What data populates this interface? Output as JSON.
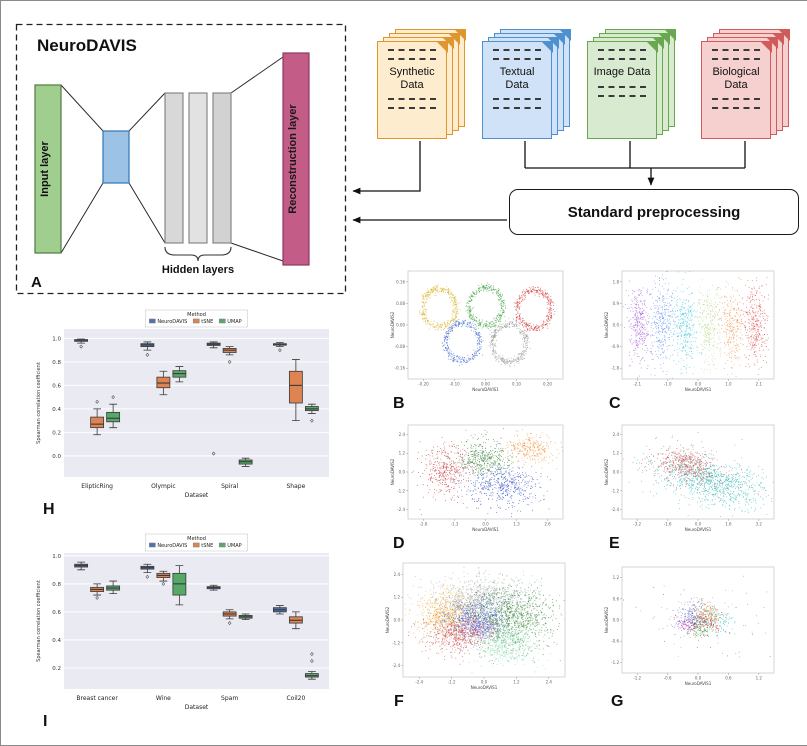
{
  "figure": {
    "panelA": {
      "tag": "A",
      "title": "NeuroDAVIS",
      "input_label": "Input layer",
      "hidden_label": "Hidden layers",
      "reconstruction_label": "Reconstruction layer"
    },
    "data_sources": [
      {
        "label": "Synthetic Data",
        "fill": "#fdeccd",
        "border": "#e0962e"
      },
      {
        "label": "Textual Data",
        "fill": "#cfe2f7",
        "border": "#4f91cf"
      },
      {
        "label": "Image Data",
        "fill": "#d8ead0",
        "border": "#6aa84f"
      },
      {
        "label": "Biological Data",
        "fill": "#f6cfcf",
        "border": "#cf5b5b"
      }
    ],
    "preprocessing_label": "Standard preprocessing",
    "architecture_colors": {
      "input": "#9fce8f",
      "bottleneck": "#9cc3e5",
      "hidden": "#d8d8d8",
      "reconstruction": "#c45c88"
    }
  },
  "chart_data": [
    {
      "tag": "B",
      "type": "scatter",
      "xlabel": "NeuroDAVIS1",
      "ylabel": "NeuroDAVIS2",
      "xlim": [
        -0.25,
        0.25
      ],
      "ylim": [
        -0.2,
        0.2
      ],
      "point_size": 0.8,
      "clusters": [
        {
          "shape": "ring",
          "color": "#d4ad17",
          "cx": -0.15,
          "cy": 0.065,
          "rx": 0.055,
          "ry": 0.07,
          "n": 380
        },
        {
          "shape": "ring",
          "color": "#3a9d3a",
          "cx": 0.0,
          "cy": 0.07,
          "rx": 0.055,
          "ry": 0.07,
          "n": 380
        },
        {
          "shape": "ring",
          "color": "#d03030",
          "cx": 0.155,
          "cy": 0.06,
          "rx": 0.055,
          "ry": 0.07,
          "n": 380
        },
        {
          "shape": "ring",
          "color": "#4169d0",
          "cx": -0.075,
          "cy": -0.062,
          "rx": 0.055,
          "ry": 0.07,
          "n": 380
        },
        {
          "shape": "ring",
          "color": "#8f8f8f",
          "cx": 0.075,
          "cy": -0.066,
          "rx": 0.055,
          "ry": 0.07,
          "n": 380
        }
      ]
    },
    {
      "tag": "C",
      "type": "scatter",
      "xlabel": "NeuroDAVIS1",
      "ylabel": "NeuroDAVIS2",
      "xlim": [
        -2.6,
        2.6
      ],
      "ylim": [
        -2.2,
        2.2
      ],
      "point_size": 0.8,
      "clusters": [
        {
          "color": "#a05ad5",
          "cx": -2.0,
          "cy": 0.0,
          "sx": 0.2,
          "sy": 0.85,
          "n": 330
        },
        {
          "color": "#5b8ff0",
          "cx": -1.2,
          "cy": 0.1,
          "sx": 0.22,
          "sy": 0.85,
          "n": 330
        },
        {
          "color": "#3ec6e0",
          "cx": -0.45,
          "cy": -0.05,
          "sx": 0.22,
          "sy": 0.8,
          "n": 330
        },
        {
          "color": "#b5d98a",
          "cx": 0.35,
          "cy": 0.05,
          "sx": 0.22,
          "sy": 0.8,
          "n": 300
        },
        {
          "color": "#f0924a",
          "cx": 1.15,
          "cy": -0.05,
          "sx": 0.22,
          "sy": 0.8,
          "n": 300
        },
        {
          "color": "#e04343",
          "cx": 1.95,
          "cy": 0.05,
          "sx": 0.2,
          "sy": 0.85,
          "n": 330
        }
      ]
    },
    {
      "tag": "D",
      "type": "scatter",
      "xlabel": "NeuroDAVIS1",
      "ylabel": "NeuroDAVIS2",
      "xlim": [
        -3.2,
        3.2
      ],
      "ylim": [
        -3,
        3
      ],
      "point_size": 0.8,
      "clusters": [
        {
          "color": "#c62828",
          "cx": -1.7,
          "cy": 0.1,
          "sx": 0.5,
          "sy": 0.8,
          "n": 320
        },
        {
          "color": "#c62828",
          "cx": -1.4,
          "cy": 0.3,
          "sx": 1.0,
          "sy": 1.2,
          "n": 60
        },
        {
          "color": "#2e7d32",
          "cx": -0.1,
          "cy": 0.85,
          "sx": 0.55,
          "sy": 0.6,
          "n": 420
        },
        {
          "color": "#2d46c8",
          "cx": 0.75,
          "cy": -0.9,
          "sx": 0.8,
          "sy": 0.65,
          "n": 480
        },
        {
          "color": "#f09030",
          "cx": 1.85,
          "cy": 1.55,
          "sx": 0.5,
          "sy": 0.45,
          "n": 280
        }
      ]
    },
    {
      "tag": "E",
      "type": "scatter",
      "xlabel": "NeuroDAVIS1",
      "ylabel": "NeuroDAVIS2",
      "xlim": [
        -4,
        4
      ],
      "ylim": [
        -3,
        3
      ],
      "point_size": 0.8,
      "clusters": [
        {
          "color": "#2ab5b5",
          "cx": 0.6,
          "cy": -0.5,
          "sx": 1.5,
          "sy": 0.65,
          "rot": -20,
          "n": 900
        },
        {
          "color": "#2ab5b5",
          "cx": 0.6,
          "cy": -0.5,
          "sx": 2.0,
          "sy": 1.0,
          "rot": -20,
          "n": 130
        },
        {
          "color": "#d94a4a",
          "cx": -0.7,
          "cy": 0.5,
          "sx": 0.85,
          "sy": 0.5,
          "rot": -15,
          "n": 420
        },
        {
          "color": "#d94a4a",
          "cx": 0.2,
          "cy": 0.0,
          "sx": 1.6,
          "sy": 0.9,
          "rot": -15,
          "n": 60
        }
      ]
    },
    {
      "tag": "F",
      "type": "scatter",
      "xlabel": "NeuroDAVIS1",
      "ylabel": "NeuroDAVIS2",
      "xlim": [
        -3,
        3
      ],
      "ylim": [
        -3,
        3
      ],
      "point_size": 0.9,
      "alpha": 0.6,
      "clusters": [
        {
          "color": "#9aa0a6",
          "cx": -0.1,
          "cy": 1.2,
          "sx": 0.95,
          "sy": 0.55,
          "n": 750
        },
        {
          "color": "#f5a623",
          "cx": -1.35,
          "cy": 0.35,
          "sx": 0.6,
          "sy": 0.6,
          "n": 650
        },
        {
          "color": "#3355cc",
          "cx": -0.35,
          "cy": 0.15,
          "sx": 0.6,
          "sy": 0.5,
          "n": 650
        },
        {
          "color": "#cc3333",
          "cx": -0.95,
          "cy": -0.7,
          "sx": 0.6,
          "sy": 0.5,
          "n": 550
        },
        {
          "color": "#8855cc",
          "cx": -0.1,
          "cy": -0.45,
          "sx": 0.4,
          "sy": 0.35,
          "n": 220
        },
        {
          "color": "#1e7a1e",
          "cx": 0.95,
          "cy": 0.15,
          "sx": 0.85,
          "sy": 0.85,
          "n": 950
        },
        {
          "color": "#7fd8a8",
          "cx": 0.7,
          "cy": -1.2,
          "sx": 0.65,
          "sy": 0.5,
          "n": 550
        }
      ]
    },
    {
      "tag": "G",
      "type": "scatter",
      "xlabel": "NeuroDAVIS1",
      "ylabel": "NeuroDAVIS2",
      "xlim": [
        -1.5,
        1.5
      ],
      "ylim": [
        -1.5,
        1.5
      ],
      "point_size": 0.8,
      "clusters": [
        {
          "color": "#2d46c8",
          "cx": -0.08,
          "cy": 0.05,
          "sx": 0.17,
          "sy": 0.17,
          "n": 150
        },
        {
          "color": "#d62728",
          "cx": 0.14,
          "cy": -0.08,
          "sx": 0.17,
          "sy": 0.17,
          "n": 130
        },
        {
          "color": "#2ca02c",
          "cx": 0.02,
          "cy": -0.24,
          "sx": 0.14,
          "sy": 0.14,
          "n": 100
        },
        {
          "color": "#ff9913",
          "cx": 0.2,
          "cy": 0.16,
          "sx": 0.14,
          "sy": 0.14,
          "n": 110
        },
        {
          "color": "#17becf",
          "cx": 0.34,
          "cy": 0.02,
          "sx": 0.18,
          "sy": 0.18,
          "n": 90
        },
        {
          "color": "#cc44cc",
          "cx": -0.24,
          "cy": -0.12,
          "sx": 0.14,
          "sy": 0.14,
          "n": 80
        },
        {
          "color": "#888888",
          "cx": 0.0,
          "cy": 0.3,
          "sx": 0.17,
          "sy": 0.17,
          "n": 90
        },
        {
          "color": "#888888",
          "cx": 0.0,
          "cy": 0.0,
          "sx": 0.75,
          "sy": 0.7,
          "n": 30
        },
        {
          "color": "#2d46c8",
          "cx": 0.0,
          "cy": 0.0,
          "sx": 0.8,
          "sy": 0.7,
          "n": 14
        },
        {
          "color": "#ff9913",
          "cx": 0.0,
          "cy": 0.0,
          "sx": 0.7,
          "sy": 0.65,
          "n": 12
        },
        {
          "color": "#17becf",
          "cx": 0.0,
          "cy": 0.0,
          "sx": 0.8,
          "sy": 0.7,
          "n": 10
        },
        {
          "color": "#d62728",
          "cx": 0.0,
          "cy": 0.0,
          "sx": 0.75,
          "sy": 0.7,
          "n": 12
        }
      ]
    },
    {
      "tag": "H",
      "type": "box",
      "ylabel": "Spearman correlation coefficient",
      "xlabel": "Dataset",
      "legend_title": "Method",
      "categories": [
        "ElipticRing",
        "Olympic",
        "Spiral",
        "Shape"
      ],
      "ylim": [
        -0.18,
        1.08
      ],
      "yticks": [
        0.0,
        0.2,
        0.4,
        0.6,
        0.8,
        1.0
      ],
      "series": [
        {
          "name": "NeuroDAVIS",
          "color": "#4c72b0",
          "stats": [
            {
              "lo": 0.96,
              "q1": 0.975,
              "med": 0.985,
              "q3": 0.99,
              "hi": 0.995,
              "out": [
                0.93
              ]
            },
            {
              "lo": 0.9,
              "q1": 0.93,
              "med": 0.945,
              "q3": 0.955,
              "hi": 0.97,
              "out": [
                0.86
              ]
            },
            {
              "lo": 0.92,
              "q1": 0.94,
              "med": 0.95,
              "q3": 0.96,
              "hi": 0.97,
              "out": [
                0.02
              ]
            },
            {
              "lo": 0.93,
              "q1": 0.945,
              "med": 0.95,
              "q3": 0.955,
              "hi": 0.965,
              "out": [
                0.9
              ]
            }
          ]
        },
        {
          "name": "tSNE",
          "color": "#dd8452",
          "stats": [
            {
              "lo": 0.18,
              "q1": 0.24,
              "med": 0.27,
              "q3": 0.33,
              "hi": 0.4,
              "out": [
                0.46
              ]
            },
            {
              "lo": 0.52,
              "q1": 0.58,
              "med": 0.62,
              "q3": 0.67,
              "hi": 0.72,
              "out": []
            },
            {
              "lo": 0.86,
              "q1": 0.88,
              "med": 0.9,
              "q3": 0.915,
              "hi": 0.93,
              "out": [
                0.8
              ]
            },
            {
              "lo": 0.3,
              "q1": 0.45,
              "med": 0.6,
              "q3": 0.72,
              "hi": 0.82,
              "out": []
            }
          ]
        },
        {
          "name": "UMAP",
          "color": "#55a868",
          "stats": [
            {
              "lo": 0.24,
              "q1": 0.29,
              "med": 0.32,
              "q3": 0.37,
              "hi": 0.44,
              "out": [
                0.5
              ]
            },
            {
              "lo": 0.63,
              "q1": 0.67,
              "med": 0.7,
              "q3": 0.725,
              "hi": 0.76,
              "out": []
            },
            {
              "lo": -0.09,
              "q1": -0.07,
              "med": -0.05,
              "q3": -0.035,
              "hi": -0.02,
              "out": []
            },
            {
              "lo": 0.36,
              "q1": 0.385,
              "med": 0.4,
              "q3": 0.42,
              "hi": 0.44,
              "out": [
                0.3
              ]
            }
          ]
        }
      ]
    },
    {
      "tag": "I",
      "type": "box",
      "ylabel": "Spearman correlation coefficient",
      "xlabel": "Dataset",
      "legend_title": "Method",
      "categories": [
        "Breast cancer",
        "Wine",
        "Spam",
        "Coil20"
      ],
      "ylim": [
        0.05,
        1.02
      ],
      "yticks": [
        0.2,
        0.4,
        0.6,
        0.8,
        1.0
      ],
      "series": [
        {
          "name": "NeuroDAVIS",
          "color": "#4c72b0",
          "stats": [
            {
              "lo": 0.9,
              "q1": 0.92,
              "med": 0.93,
              "q3": 0.94,
              "hi": 0.955,
              "out": []
            },
            {
              "lo": 0.88,
              "q1": 0.905,
              "med": 0.915,
              "q3": 0.925,
              "hi": 0.94,
              "out": [
                0.85
              ]
            },
            {
              "lo": 0.755,
              "q1": 0.765,
              "med": 0.775,
              "q3": 0.78,
              "hi": 0.79,
              "out": []
            },
            {
              "lo": 0.585,
              "q1": 0.6,
              "med": 0.615,
              "q3": 0.63,
              "hi": 0.645,
              "out": []
            }
          ]
        },
        {
          "name": "tSNE",
          "color": "#dd8452",
          "stats": [
            {
              "lo": 0.72,
              "q1": 0.745,
              "med": 0.76,
              "q3": 0.775,
              "hi": 0.8,
              "out": [
                0.7
              ]
            },
            {
              "lo": 0.82,
              "q1": 0.845,
              "med": 0.86,
              "q3": 0.875,
              "hi": 0.89,
              "out": [
                0.8
              ]
            },
            {
              "lo": 0.55,
              "q1": 0.57,
              "med": 0.585,
              "q3": 0.6,
              "hi": 0.615,
              "out": [
                0.52
              ]
            },
            {
              "lo": 0.48,
              "q1": 0.52,
              "med": 0.54,
              "q3": 0.565,
              "hi": 0.6,
              "out": []
            }
          ]
        },
        {
          "name": "UMAP",
          "color": "#55a868",
          "stats": [
            {
              "lo": 0.73,
              "q1": 0.755,
              "med": 0.77,
              "q3": 0.785,
              "hi": 0.82,
              "out": []
            },
            {
              "lo": 0.65,
              "q1": 0.72,
              "med": 0.8,
              "q3": 0.875,
              "hi": 0.93,
              "out": []
            },
            {
              "lo": 0.545,
              "q1": 0.555,
              "med": 0.565,
              "q3": 0.575,
              "hi": 0.585,
              "out": []
            },
            {
              "lo": 0.12,
              "q1": 0.135,
              "med": 0.145,
              "q3": 0.16,
              "hi": 0.175,
              "out": [
                0.25,
                0.3
              ]
            }
          ]
        }
      ]
    }
  ]
}
